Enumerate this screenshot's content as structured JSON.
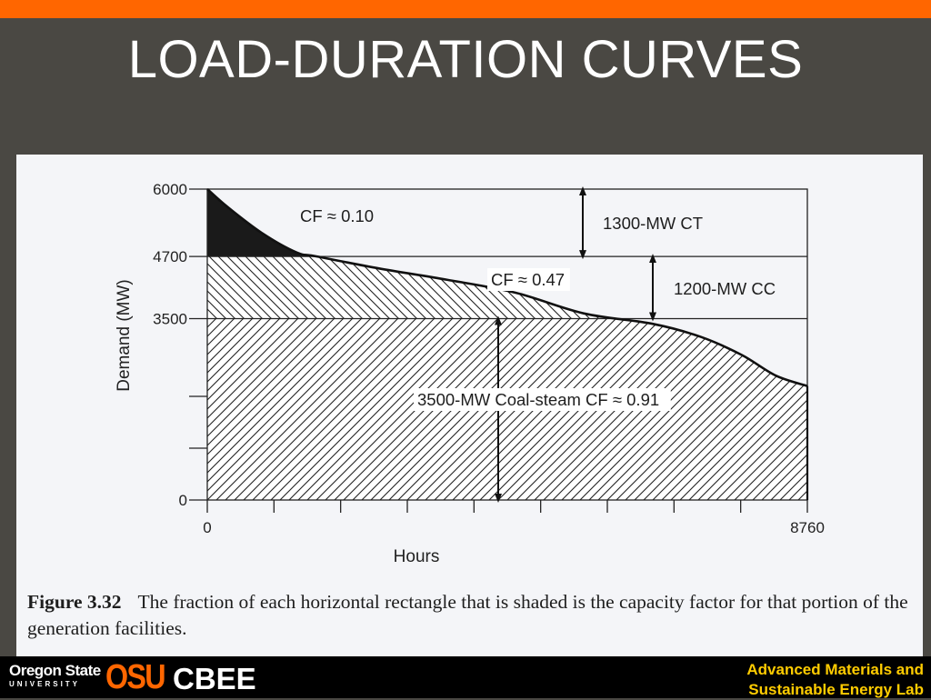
{
  "slide": {
    "title": "LOAD-DURATION CURVES",
    "accent_color": "#ff6600",
    "background_color": "#4a4843"
  },
  "figure": {
    "caption_label": "Figure 3.32",
    "caption_text": "The fraction of each horizontal rectangle that is shaded is the capacity factor for that portion of the generation facilities."
  },
  "chart_data": {
    "type": "area",
    "xlabel": "Hours",
    "ylabel": "Demand (MW)",
    "xlim": [
      0,
      8760
    ],
    "ylim": [
      0,
      6000
    ],
    "x_tick_labels": [
      {
        "value": 0,
        "label": "0"
      },
      {
        "value": 8760,
        "label": "8760"
      }
    ],
    "x_tick_count_minor": 9,
    "y_tick_labels": [
      {
        "value": 0,
        "label": "0"
      },
      {
        "value": 3500,
        "label": "3500"
      },
      {
        "value": 4700,
        "label": "4700"
      },
      {
        "value": 6000,
        "label": "6000"
      }
    ],
    "y_unlabeled_ticks": [
      1000,
      2000
    ],
    "load_duration_curve": {
      "x": [
        0,
        300,
        800,
        1300,
        1600,
        2500,
        3500,
        4500,
        5500,
        6500,
        7200,
        7800,
        8300,
        8760
      ],
      "y": [
        6000,
        5650,
        5150,
        4780,
        4700,
        4470,
        4250,
        4000,
        3600,
        3400,
        3150,
        2800,
        2400,
        2200
      ]
    },
    "tiers": [
      {
        "name": "1300-MW CT",
        "lower": 4700,
        "upper": 6000,
        "cf_label": "CF ≈ 0.10"
      },
      {
        "name": "1200-MW CC",
        "lower": 3500,
        "upper": 4700,
        "cf_label": "CF ≈ 0.47"
      },
      {
        "name": "3500-MW Coal-steam",
        "lower": 0,
        "upper": 3500,
        "cf_label": "3500-MW Coal-steam CF ≈ 0.91"
      }
    ],
    "grid": false
  },
  "footer": {
    "university_line1": "Oregon State",
    "university_line2": "UNIVERSITY",
    "osu_letters": "OSU",
    "department": "CBEE",
    "lab_line1": "Advanced Materials and",
    "lab_line2": "Sustainable Energy Lab",
    "lab_color": "#ffcc00"
  }
}
